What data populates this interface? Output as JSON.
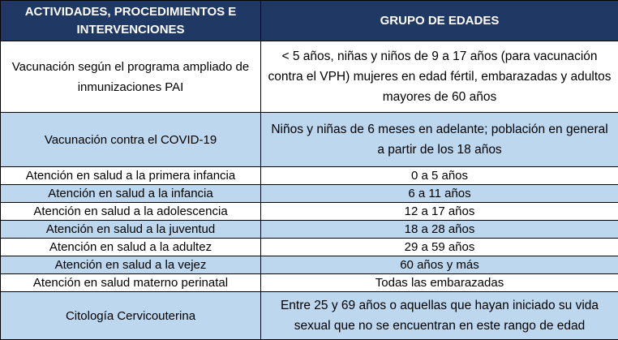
{
  "colors": {
    "header_bg": "#1f3864",
    "header_text": "#ffffff",
    "shade_bg": "#bdd7ee",
    "plain_bg": "#ffffff",
    "border": "#000000"
  },
  "table": {
    "headers": [
      "ACTIVIDADES, PROCEDIMIENTOS E INTERVENCIONES",
      "GRUPO DE EDADES"
    ],
    "rows": [
      {
        "activity": "Vacunación según el programa ampliado de inmunizaciones PAI",
        "ages": "< 5 años, niñas y niños de 9 a 17 años (para vacunación contra el VPH) mujeres en edad fértil, embarazadas y adultos mayores de 60 años"
      },
      {
        "activity": "Vacunación contra el COVID-19",
        "ages": "Niños y niñas de 6 meses en adelante; población en general a partir de los 18 años"
      },
      {
        "activity": "Atención en salud a la primera infancia",
        "ages": "0 a 5 años"
      },
      {
        "activity": "Atención en salud a la  infancia",
        "ages": "6 a 11 años"
      },
      {
        "activity": "Atención en salud a la adolescencia",
        "ages": "12 a 17 años"
      },
      {
        "activity": "Atención en salud a la juventud",
        "ages": "18 a 28 años"
      },
      {
        "activity": "Atención en salud a la adultez",
        "ages": "29 a 59 años"
      },
      {
        "activity": "Atención en salud a la vejez",
        "ages": "60 años y más"
      },
      {
        "activity": "Atención en salud materno perinatal",
        "ages": "Todas las embarazadas"
      },
      {
        "activity": "Citología Cervicouterina",
        "ages": "Entre 25 y 69 años o aquellas que hayan iniciado su vida sexual que no se encuentran en este rango de edad"
      }
    ]
  }
}
